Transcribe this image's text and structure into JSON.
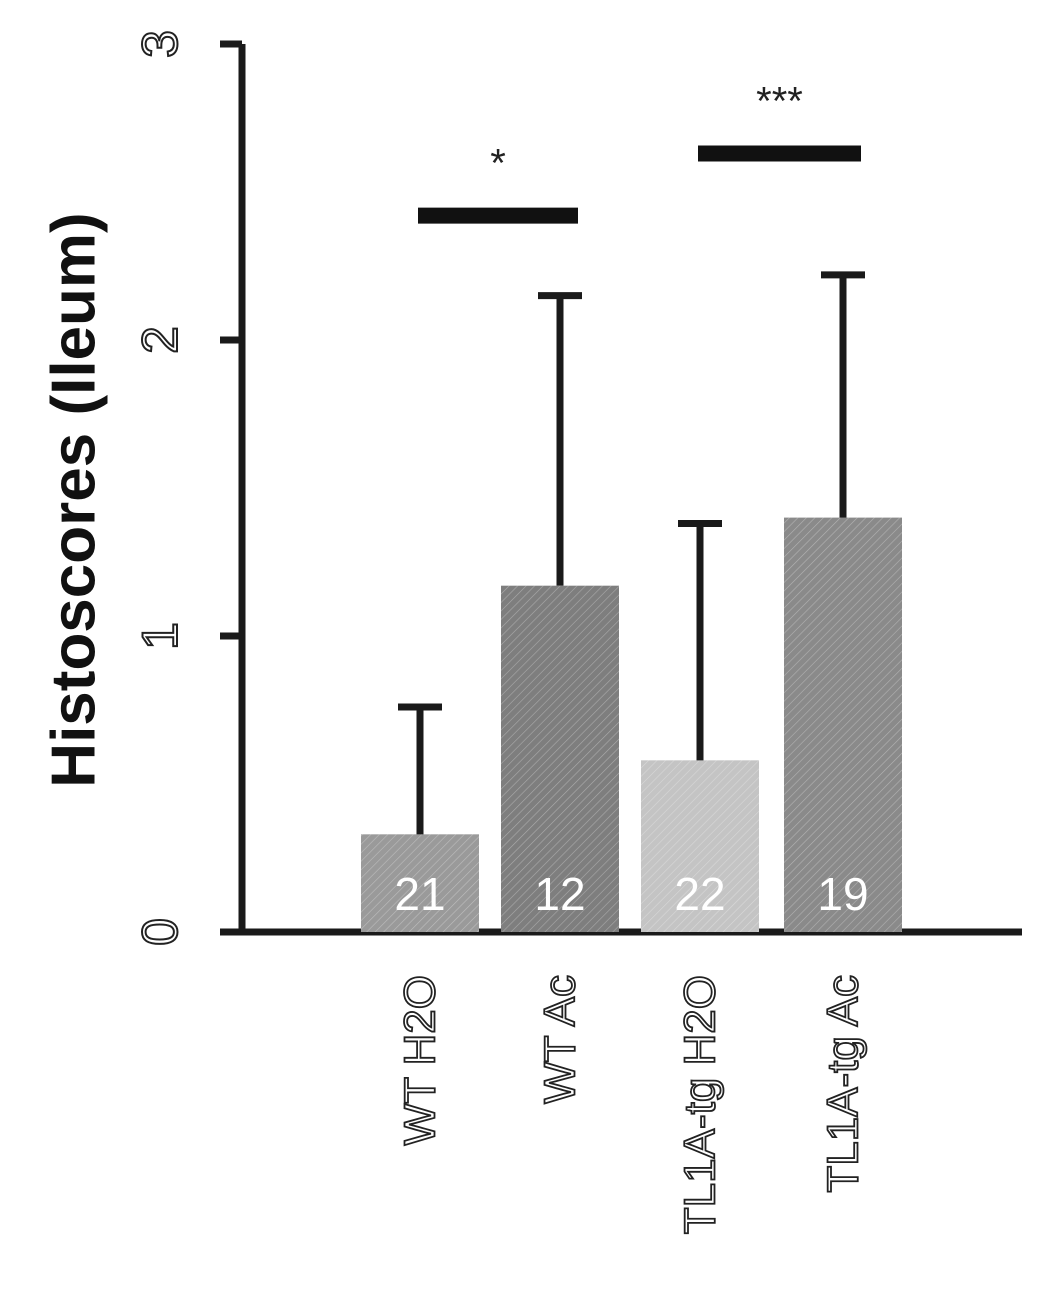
{
  "chart_data": {
    "type": "bar",
    "ylabel": "Histoscores (Ileum)",
    "xlabel": "",
    "ylim": [
      0,
      3
    ],
    "yticks": [
      0,
      1,
      2,
      3
    ],
    "categories": [
      "WT H2O",
      "WT Ac",
      "TL1A-tg H2O",
      "TL1A-tg Ac"
    ],
    "values": [
      0.33,
      1.17,
      0.58,
      1.4
    ],
    "errors": [
      0.43,
      0.98,
      0.8,
      0.82
    ],
    "n_labels": [
      "21",
      "12",
      "22",
      "19"
    ],
    "bar_colors": [
      "#9a9a9a",
      "#7e7e7e",
      "#c4c4c4",
      "#8a8a8a"
    ],
    "significance": [
      {
        "from": 0,
        "to": 1,
        "label": "*",
        "y": 2.42
      },
      {
        "from": 2,
        "to": 3,
        "label": "***",
        "y": 2.63
      }
    ],
    "grid": false
  }
}
